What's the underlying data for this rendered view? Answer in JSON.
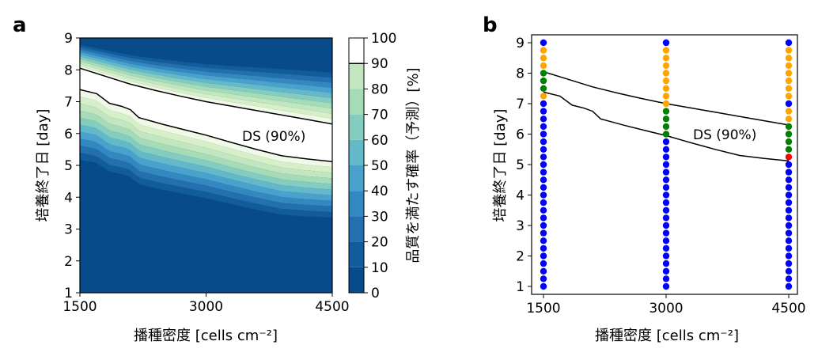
{
  "chart_data": [
    {
      "panel_label": "a",
      "type": "contour",
      "xlabel": "播種密度 [cells cm⁻²]",
      "ylabel": "培養終了日 [day]",
      "xlim": [
        1500,
        4500
      ],
      "ylim": [
        1,
        9
      ],
      "xticks": [
        1500,
        3000,
        4500
      ],
      "yticks": [
        1,
        2,
        3,
        4,
        5,
        6,
        7,
        8,
        9
      ],
      "colorbar": {
        "label": "品質を満たす確率（予測）[%]",
        "ticks": [
          0,
          10,
          20,
          30,
          40,
          50,
          60,
          70,
          80,
          90,
          100
        ],
        "range": [
          0,
          100
        ]
      },
      "ds_label": "DS (90%)",
      "ds_upper": {
        "x": [
          1500,
          1800,
          2100,
          2400,
          2700,
          3000,
          3300,
          3600,
          3900,
          4200,
          4500
        ],
        "y": [
          8.05,
          7.8,
          7.55,
          7.35,
          7.17,
          7.0,
          6.86,
          6.72,
          6.58,
          6.44,
          6.3
        ]
      },
      "ds_lower": {
        "x": [
          1500,
          1700,
          1850,
          2000,
          2100,
          2200,
          2500,
          2800,
          3000,
          3300,
          3600,
          3900,
          4200,
          4500
        ],
        "y": [
          7.38,
          7.25,
          6.95,
          6.85,
          6.75,
          6.5,
          6.28,
          6.08,
          5.95,
          5.72,
          5.5,
          5.3,
          5.2,
          5.12
        ]
      }
    },
    {
      "panel_label": "b",
      "type": "scatter",
      "xlabel": "播種密度 [cells cm⁻²]",
      "ylabel": "培養終了日 [day]",
      "xlim": [
        1500,
        4500
      ],
      "ylim": [
        1,
        9
      ],
      "xticks": [
        1500,
        3000,
        4500
      ],
      "yticks": [
        1,
        2,
        3,
        4,
        5,
        6,
        7,
        8,
        9
      ],
      "ds_label": "DS (90%)",
      "y_step": 0.25,
      "colors": {
        "blue": "#0000ff",
        "orange": "#ffa500",
        "green": "#008000",
        "red": "#ff0000"
      },
      "series": [
        {
          "x": 1500,
          "segments": [
            {
              "from": 1.0,
              "to": 7.0,
              "color": "blue"
            },
            {
              "from": 7.25,
              "to": 7.25,
              "color": "orange"
            },
            {
              "from": 7.5,
              "to": 8.0,
              "color": "green"
            },
            {
              "from": 8.25,
              "to": 8.75,
              "color": "orange"
            },
            {
              "from": 9.0,
              "to": 9.0,
              "color": "blue"
            }
          ]
        },
        {
          "x": 3000,
          "segments": [
            {
              "from": 1.0,
              "to": 5.75,
              "color": "blue"
            },
            {
              "from": 6.0,
              "to": 6.75,
              "color": "green"
            },
            {
              "from": 7.0,
              "to": 8.75,
              "color": "orange"
            },
            {
              "from": 9.0,
              "to": 9.0,
              "color": "blue"
            }
          ]
        },
        {
          "x": 4500,
          "segments": [
            {
              "from": 1.0,
              "to": 5.0,
              "color": "blue"
            },
            {
              "from": 5.25,
              "to": 5.25,
              "color": "red"
            },
            {
              "from": 5.5,
              "to": 6.25,
              "color": "green"
            },
            {
              "from": 6.5,
              "to": 6.75,
              "color": "orange"
            },
            {
              "from": 7.0,
              "to": 7.0,
              "color": "blue"
            },
            {
              "from": 7.25,
              "to": 8.75,
              "color": "orange"
            },
            {
              "from": 9.0,
              "to": 9.0,
              "color": "blue"
            }
          ]
        }
      ]
    }
  ]
}
